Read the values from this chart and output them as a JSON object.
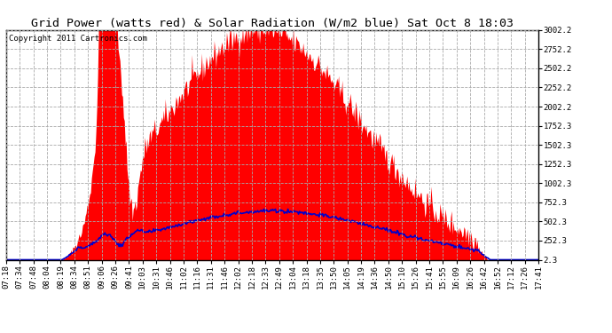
{
  "title": "Grid Power (watts red) & Solar Radiation (W/m2 blue) Sat Oct 8 18:03",
  "copyright_text": "Copyright 2011 Cartronics.com",
  "yticks": [
    2.3,
    252.3,
    502.3,
    752.3,
    1002.3,
    1252.3,
    1502.3,
    1752.3,
    2002.2,
    2252.2,
    2502.2,
    2752.2,
    3002.2
  ],
  "ylim": [
    2.3,
    3002.2
  ],
  "xtick_labels": [
    "07:18",
    "07:34",
    "07:48",
    "08:04",
    "08:19",
    "08:34",
    "08:51",
    "09:06",
    "09:26",
    "09:41",
    "10:03",
    "10:31",
    "10:46",
    "11:02",
    "11:16",
    "11:31",
    "11:46",
    "12:02",
    "12:18",
    "12:33",
    "12:49",
    "13:04",
    "13:18",
    "13:35",
    "13:50",
    "14:05",
    "14:19",
    "14:36",
    "14:50",
    "15:10",
    "15:26",
    "15:41",
    "15:55",
    "16:09",
    "16:26",
    "16:42",
    "16:52",
    "17:12",
    "17:26",
    "17:41"
  ],
  "background_color": "#ffffff",
  "grid_color": "#aaaaaa",
  "fill_color": "#ff0000",
  "line_color": "#0000cc",
  "title_fontsize": 9.5,
  "copyright_fontsize": 6.5,
  "tick_fontsize": 6.5
}
